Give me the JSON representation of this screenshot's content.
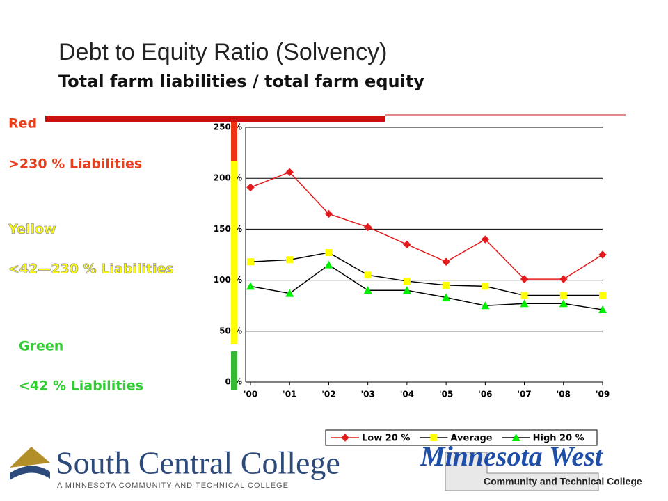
{
  "title": "Debt to Equity Ratio (Solvency)",
  "subtitle": "Total farm liabilities / total farm equity",
  "zones": [
    {
      "name": "Red",
      "range": ">230 % Liabilities"
    },
    {
      "name": "Yellow",
      "range": "<42—230 % Liabilities"
    },
    {
      "name": "Green",
      "range": "<42 % Liabilities"
    }
  ],
  "logos": {
    "left": {
      "name": "South Central College",
      "tagline": "A MINNESOTA COMMUNITY AND TECHNICAL COLLEGE"
    },
    "right": {
      "name": "Minnesota West",
      "tagline": "Community and Technical College"
    }
  },
  "chart_data": {
    "type": "line",
    "categories": [
      "'00",
      "'01",
      "'02",
      "'03",
      "'04",
      "'05",
      "'06",
      "'07",
      "'08",
      "'09"
    ],
    "series": [
      {
        "name": "Low 20 %",
        "color": "#e31a1c",
        "marker": "diamond",
        "values": [
          191,
          206,
          165,
          152,
          135,
          118,
          140,
          101,
          101,
          125
        ]
      },
      {
        "name": "Average",
        "color": "#ffff00",
        "marker": "square",
        "values": [
          118,
          120,
          127,
          105,
          99,
          95,
          94,
          85,
          85,
          85
        ]
      },
      {
        "name": "High 20 %",
        "color": "#00ee00",
        "marker": "triangle",
        "values": [
          94,
          87,
          115,
          90,
          90,
          83,
          75,
          77,
          77,
          71
        ]
      }
    ],
    "ylim": [
      0,
      250
    ],
    "yticks": [
      {
        "value": 0,
        "label": "0 %"
      },
      {
        "value": 50,
        "label": "50 %"
      },
      {
        "value": 100,
        "label": "100 %"
      },
      {
        "value": 150,
        "label": "150 %"
      },
      {
        "value": 200,
        "label": "200 %"
      },
      {
        "value": 250,
        "label": "250 %"
      }
    ],
    "grid": true,
    "legend": "bottom"
  }
}
